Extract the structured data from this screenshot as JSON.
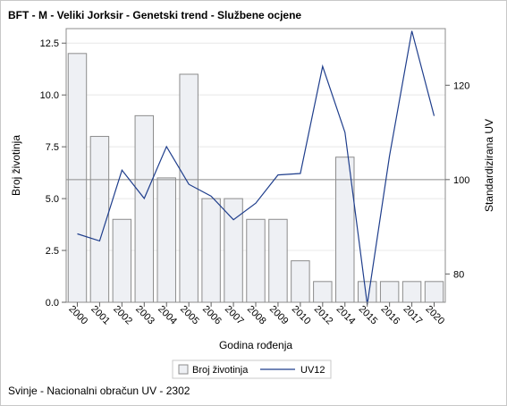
{
  "chart_data": {
    "type": "bar+line",
    "title": "BFT - M - Veliki Jorksir - Genetski trend - Službene ocjene",
    "xlabel": "Godina rođenja",
    "ylabel": "Broj životinja",
    "y2label": "Standardizirana UV",
    "categories": [
      "2000",
      "2001",
      "2002",
      "2003",
      "2004",
      "2005",
      "2006",
      "2007",
      "2008",
      "2009",
      "2010",
      "2012",
      "2014",
      "2015",
      "2016",
      "2017",
      "2020"
    ],
    "series": [
      {
        "name": "Broj životinja",
        "type": "bar",
        "axis": "left",
        "color": "#eef0f4",
        "stroke": "#8c8c8c",
        "values": [
          12,
          8,
          4,
          9,
          6,
          11,
          5,
          5,
          4,
          4,
          2,
          1,
          7,
          1,
          1,
          1,
          1
        ]
      },
      {
        "name": "UV12",
        "type": "line",
        "axis": "right",
        "color": "#1f3e8c",
        "values": [
          88.5,
          87,
          102,
          96,
          107,
          99,
          96.5,
          91.5,
          95,
          101,
          101.3,
          124,
          110,
          73.5,
          105,
          131.5,
          113.5
        ]
      }
    ],
    "ylim": [
      0,
      13.2
    ],
    "yticks": [
      "0.0",
      "2.5",
      "5.0",
      "7.5",
      "10.0",
      "12.5"
    ],
    "y2lim": [
      74,
      132
    ],
    "y2ticks": [
      "80",
      "100",
      "120"
    ],
    "reference_line": 100,
    "legend": {
      "placement": "bottom"
    }
  },
  "footnote": "Svinje - Nacionalni obračun UV - 2302"
}
